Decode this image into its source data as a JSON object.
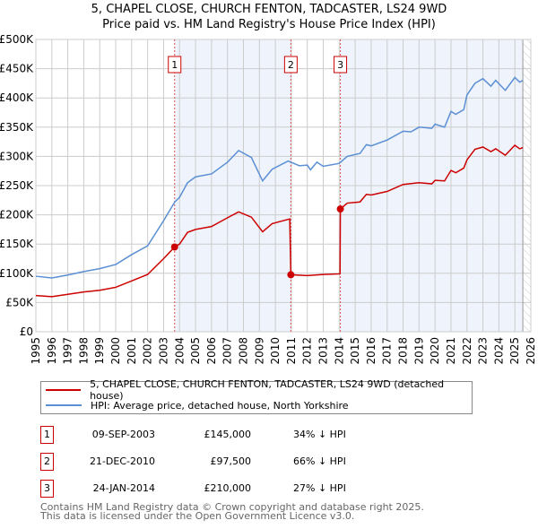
{
  "title_line1": "5, CHAPEL CLOSE, CHURCH FENTON, TADCASTER, LS24 9WD",
  "title_line2": "Price paid vs. HM Land Registry's House Price Index (HPI)",
  "chart_data": {
    "type": "line",
    "xlim": [
      1995,
      2026
    ],
    "ylim": [
      0,
      500000
    ],
    "y_ticks": [
      0,
      50000,
      100000,
      150000,
      200000,
      250000,
      300000,
      350000,
      400000,
      450000,
      500000
    ],
    "y_tick_labels": [
      "£0",
      "£50K",
      "£100K",
      "£150K",
      "£200K",
      "£250K",
      "£300K",
      "£350K",
      "£400K",
      "£450K",
      "£500K"
    ],
    "x_ticks": [
      "1995",
      "1996",
      "1997",
      "1998",
      "1999",
      "2000",
      "2001",
      "2002",
      "2003",
      "2004",
      "2005",
      "2006",
      "2007",
      "2008",
      "2009",
      "2010",
      "2011",
      "2012",
      "2013",
      "2014",
      "2015",
      "2016",
      "2017",
      "2018",
      "2019",
      "2020",
      "2021",
      "2022",
      "2023",
      "2024",
      "2025",
      "2026"
    ],
    "grid": true,
    "series": [
      {
        "name": "5, CHAPEL CLOSE, CHURCH FENTON, TADCASTER, LS24 9WD (detached house)",
        "color": "#cc0000",
        "x": [
          1995,
          1996,
          1997,
          1998,
          1999,
          2000,
          2001,
          2002,
          2003,
          2003.69,
          2004,
          2004.5,
          2005,
          2006,
          2007,
          2007.7,
          2008.5,
          2009.2,
          2009.8,
          2010.9,
          2010.97,
          2012,
          2013,
          2014.05,
          2014.07,
          2014.5,
          2015.3,
          2015.7,
          2016,
          2017,
          2018,
          2019,
          2019.8,
          2020,
          2020.6,
          2021,
          2021.3,
          2021.8,
          2022,
          2022.5,
          2023,
          2023.5,
          2023.8,
          2024.4,
          2025,
          2025.3,
          2025.5
        ],
        "y": [
          62000,
          60000,
          64000,
          68000,
          71000,
          76000,
          87000,
          98000,
          125000,
          145000,
          150000,
          170000,
          175000,
          180000,
          195000,
          205000,
          196000,
          171000,
          185000,
          193000,
          97500,
          96000,
          98000,
          99000,
          210000,
          220000,
          222000,
          235000,
          234000,
          240000,
          252000,
          255000,
          253000,
          259000,
          258000,
          276000,
          272000,
          280000,
          294000,
          312000,
          316000,
          308000,
          313000,
          302000,
          319000,
          313000,
          315000
        ]
      },
      {
        "name": "HPI: Average price, detached house, North Yorkshire",
        "color": "#5b8fd4",
        "x": [
          1995,
          1996,
          1997,
          1998,
          1999,
          2000,
          2001,
          2002,
          2003,
          2003.7,
          2004,
          2004.5,
          2005,
          2006,
          2007,
          2007.7,
          2008.5,
          2009.2,
          2009.8,
          2010.8,
          2011.5,
          2012,
          2012.2,
          2012.6,
          2013,
          2014,
          2014.5,
          2015.3,
          2015.7,
          2016,
          2017,
          2018,
          2018.5,
          2019,
          2019.8,
          2020,
          2020.6,
          2021,
          2021.3,
          2021.8,
          2022,
          2022.5,
          2023,
          2023.5,
          2023.8,
          2024.4,
          2025,
          2025.3,
          2025.5
        ],
        "y": [
          95000,
          92000,
          97000,
          103000,
          108000,
          115000,
          132000,
          147000,
          190000,
          222000,
          230000,
          255000,
          265000,
          270000,
          290000,
          310000,
          298000,
          258000,
          278000,
          292000,
          284000,
          285000,
          277000,
          290000,
          283000,
          288000,
          300000,
          305000,
          320000,
          318000,
          328000,
          343000,
          342000,
          350000,
          348000,
          355000,
          350000,
          377000,
          372000,
          380000,
          405000,
          425000,
          433000,
          420000,
          430000,
          413000,
          435000,
          427000,
          430000
        ]
      }
    ],
    "sales": [
      {
        "label": "1",
        "x": 2003.69,
        "y": 145000
      },
      {
        "label": "2",
        "x": 2010.97,
        "y": 97500
      },
      {
        "label": "3",
        "x": 2014.07,
        "y": 210000
      }
    ],
    "forecast_start": 2025.5
  },
  "legend": {
    "red": "5, CHAPEL CLOSE, CHURCH FENTON, TADCASTER, LS24 9WD (detached house)",
    "blue": "HPI: Average price, detached house, North Yorkshire"
  },
  "sales_table": [
    {
      "num": "1",
      "date": "09-SEP-2003",
      "price": "£145,000",
      "hpi": "34% ↓ HPI"
    },
    {
      "num": "2",
      "date": "21-DEC-2010",
      "price": "£97,500",
      "hpi": "66% ↓ HPI"
    },
    {
      "num": "3",
      "date": "24-JAN-2014",
      "price": "£210,000",
      "hpi": "27% ↓ HPI"
    }
  ],
  "footer_line1": "Contains HM Land Registry data © Crown copyright and database right 2025.",
  "footer_line2": "This data is licensed under the Open Government Licence v3.0."
}
